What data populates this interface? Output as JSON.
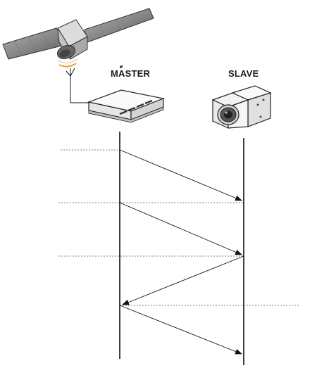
{
  "labels": {
    "master": "MASTER",
    "slave": "SLAVE"
  },
  "colors": {
    "line": "#111111",
    "dashed": "#555555",
    "signal": "#e8a23a",
    "panel_light": "#9b9b9b",
    "panel_dark": "#4a4a4a",
    "device_body": "#f4f4f4"
  },
  "icons": {
    "satellite": "satellite-icon",
    "switch": "network-switch-icon",
    "camera": "camera-icon"
  }
}
